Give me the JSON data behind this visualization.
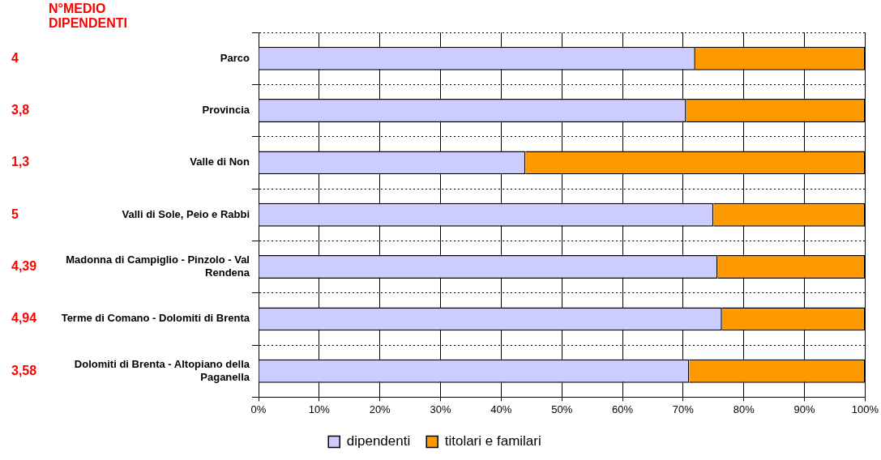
{
  "chart_data": {
    "type": "bar",
    "orientation": "horizontal",
    "stacked": true,
    "categories": [
      "Parco",
      "Provincia",
      "Valle di Non",
      "Valli di Sole, Peio e Rabbi",
      "Madonna di Campiglio - Pinzolo - Val Rendena",
      "Terme di Comano - Dolomiti di Brenta",
      "Dolomiti di Brenta - Altopiano della Paganella"
    ],
    "series": [
      {
        "name": "dipendenti",
        "color": "#ccccff",
        "values": [
          72,
          70.5,
          44,
          75,
          75.7,
          76.4,
          71
        ]
      },
      {
        "name": "titolari e familari",
        "color": "#ff9900",
        "values": [
          28,
          29.5,
          56,
          25,
          24.3,
          23.6,
          29
        ]
      }
    ],
    "xlim": [
      0,
      100
    ],
    "xticks": [
      {
        "value": 0,
        "label": "0%"
      },
      {
        "value": 10,
        "label": "10%"
      },
      {
        "value": 20,
        "label": "20%"
      },
      {
        "value": 30,
        "label": "30%"
      },
      {
        "value": 40,
        "label": "40%"
      },
      {
        "value": 50,
        "label": "50%"
      },
      {
        "value": 60,
        "label": "60%"
      },
      {
        "value": 70,
        "label": "70%"
      },
      {
        "value": 80,
        "label": "80%"
      },
      {
        "value": 90,
        "label": "90%"
      },
      {
        "value": 100,
        "label": "100%"
      }
    ],
    "annotations": [
      "N°MEDIO DIPENDENTI",
      "4",
      "3,8",
      "1,3",
      "5",
      "4,39",
      "4,94",
      "3,58"
    ],
    "grid": true,
    "legend": "bottom"
  }
}
